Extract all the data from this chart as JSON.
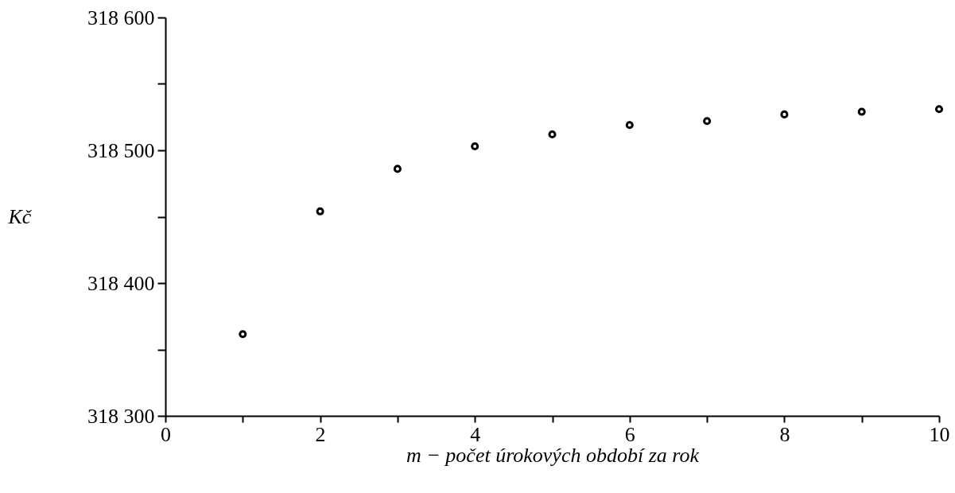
{
  "chart_data": {
    "type": "scatter",
    "xlabel": "m − počet úrokových období za rok",
    "ylabel": "Kč",
    "x": [
      1,
      2,
      3,
      4,
      5,
      6,
      7,
      8,
      9,
      10
    ],
    "series": [
      {
        "color": "#000000",
        "values": [
          318361.5,
          318454,
          318486,
          318503,
          318512,
          318519,
          318522,
          318527,
          318529,
          318531
        ]
      }
    ],
    "xlim": [
      0,
      10
    ],
    "xticks": [
      0,
      {
        "value": 1,
        "label": null
      },
      2,
      {
        "value": 3,
        "label": null
      },
      4,
      {
        "value": 5,
        "label": null
      },
      6,
      {
        "value": 7,
        "label": null
      },
      8,
      {
        "value": 9,
        "label": null
      },
      10
    ],
    "ylim": [
      318300,
      318600
    ],
    "yticks": [
      {
        "value": 318300,
        "label": "318 300"
      },
      {
        "value": 318350,
        "label": null
      },
      {
        "value": 318400,
        "label": "318 400"
      },
      {
        "value": 318450,
        "label": null
      },
      {
        "value": 318500,
        "label": "318 500"
      },
      {
        "value": 318550,
        "label": null
      },
      {
        "value": 318600,
        "label": "318 600"
      }
    ],
    "grid": false,
    "marker": "circle"
  }
}
